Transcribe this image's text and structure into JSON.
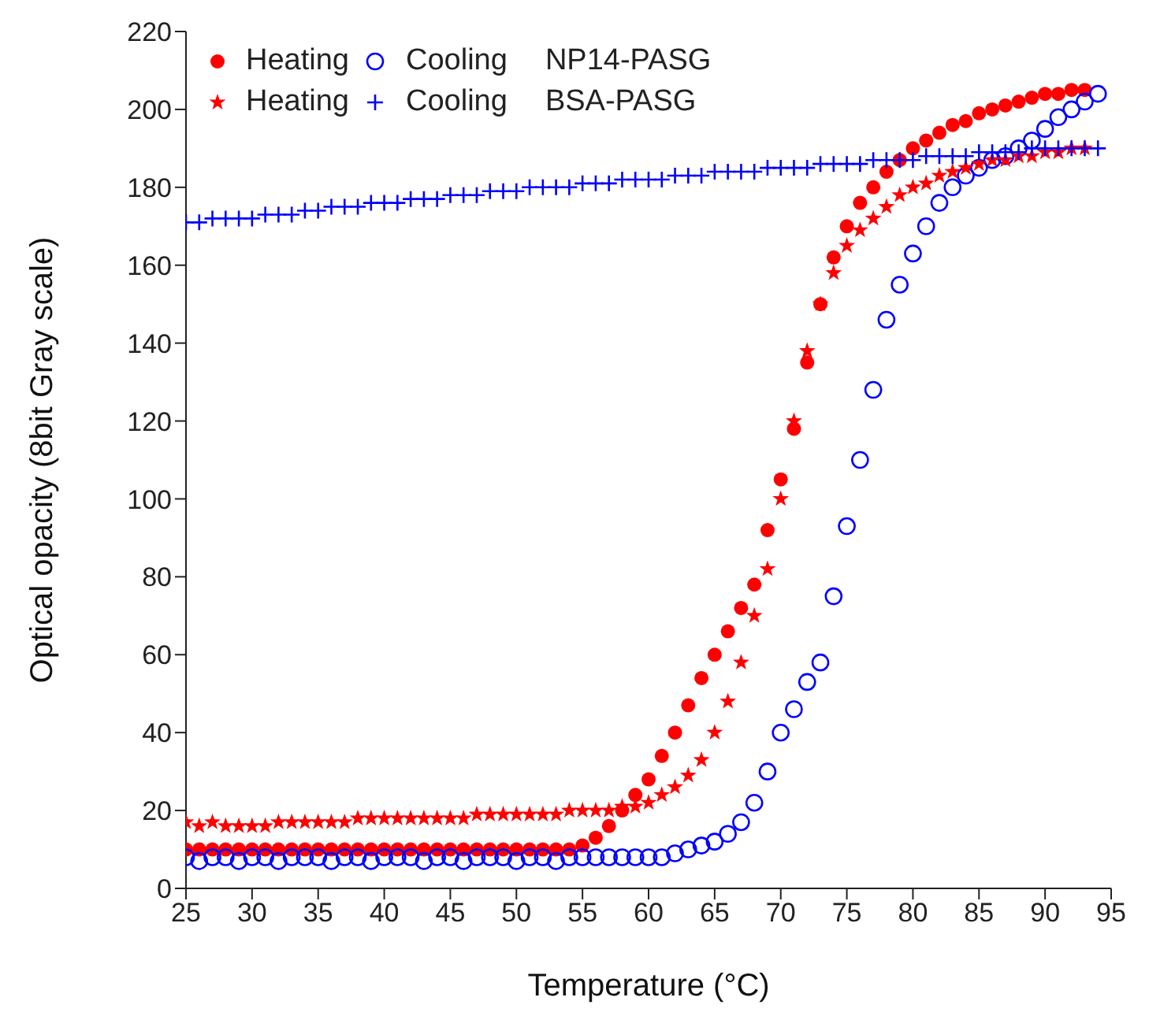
{
  "chart_data": {
    "type": "scatter",
    "xlabel": "Temperature (°C)",
    "ylabel": "Optical opacity (8bit Gray scale)",
    "x": [
      25,
      26,
      27,
      28,
      29,
      30,
      31,
      32,
      33,
      34,
      35,
      36,
      37,
      38,
      39,
      40,
      41,
      42,
      43,
      44,
      45,
      46,
      47,
      48,
      49,
      50,
      51,
      52,
      53,
      54,
      55,
      56,
      57,
      58,
      59,
      60,
      61,
      62,
      63,
      64,
      65,
      66,
      67,
      68,
      69,
      70,
      71,
      72,
      73,
      74,
      75,
      76,
      77,
      78,
      79,
      80,
      81,
      82,
      83,
      84,
      85,
      86,
      87,
      88,
      89,
      90,
      91,
      92,
      93,
      94
    ],
    "series": [
      {
        "name": "Heating",
        "color": "#ff0000",
        "marker": "circle",
        "values": [
          10,
          10,
          10,
          10,
          10,
          10,
          10,
          10,
          10,
          10,
          10,
          10,
          10,
          10,
          10,
          10,
          10,
          10,
          10,
          10,
          10,
          10,
          10,
          10,
          10,
          10,
          10,
          10,
          10,
          10,
          11,
          13,
          16,
          20,
          24,
          28,
          34,
          40,
          47,
          54,
          60,
          66,
          72,
          78,
          92,
          105,
          118,
          135,
          150,
          162,
          170,
          176,
          180,
          184,
          187,
          190,
          192,
          194,
          196,
          197,
          199,
          200,
          201,
          202,
          203,
          204,
          204,
          205,
          205,
          null
        ]
      },
      {
        "name": "Cooling",
        "color": "#0000ff",
        "marker": "circle",
        "values": [
          8,
          7,
          8,
          8,
          7,
          8,
          8,
          7,
          8,
          8,
          8,
          7,
          8,
          8,
          7,
          8,
          8,
          8,
          7,
          8,
          8,
          7,
          8,
          8,
          8,
          7,
          8,
          8,
          7,
          8,
          8,
          8,
          8,
          8,
          8,
          8,
          8,
          9,
          10,
          11,
          12,
          14,
          17,
          22,
          30,
          40,
          46,
          53,
          58,
          75,
          93,
          110,
          128,
          146,
          155,
          163,
          170,
          176,
          180,
          183,
          185,
          187,
          188,
          190,
          192,
          195,
          198,
          200,
          202,
          204
        ]
      },
      {
        "name": "Heating",
        "color": "#ff0000",
        "marker": "star",
        "values": [
          17,
          16,
          17,
          16,
          16,
          16,
          16,
          17,
          17,
          17,
          17,
          17,
          17,
          18,
          18,
          18,
          18,
          18,
          18,
          18,
          18,
          18,
          19,
          19,
          19,
          19,
          19,
          19,
          19,
          20,
          20,
          20,
          20,
          21,
          21,
          22,
          24,
          26,
          29,
          33,
          40,
          48,
          58,
          70,
          82,
          100,
          120,
          138,
          150,
          158,
          165,
          169,
          172,
          175,
          178,
          180,
          181,
          183,
          184,
          185,
          186,
          187,
          187,
          188,
          188,
          189,
          189,
          190,
          190,
          null
        ]
      },
      {
        "name": "Cooling",
        "color": "#0000ff",
        "marker": "cross",
        "values": [
          171,
          171,
          172,
          172,
          172,
          172,
          173,
          173,
          173,
          174,
          174,
          175,
          175,
          175,
          176,
          176,
          176,
          177,
          177,
          177,
          178,
          178,
          178,
          179,
          179,
          179,
          180,
          180,
          180,
          180,
          181,
          181,
          181,
          182,
          182,
          182,
          182,
          183,
          183,
          183,
          184,
          184,
          184,
          184,
          185,
          185,
          185,
          185,
          186,
          186,
          186,
          186,
          187,
          187,
          187,
          187,
          188,
          188,
          188,
          188,
          189,
          189,
          189,
          189,
          190,
          190,
          190,
          190,
          190,
          190
        ]
      }
    ],
    "annotations": [
      "NP14-PASG",
      "BSA-PASG"
    ],
    "xlim": [
      25,
      95
    ],
    "xticks": [
      25,
      30,
      35,
      40,
      45,
      50,
      55,
      60,
      65,
      70,
      75,
      80,
      85,
      90,
      95
    ],
    "ylim": [
      0,
      220
    ],
    "yticks": [
      0,
      20,
      40,
      60,
      80,
      100,
      120,
      140,
      160,
      180,
      200,
      220
    ],
    "grid": false,
    "legend": "top left"
  }
}
